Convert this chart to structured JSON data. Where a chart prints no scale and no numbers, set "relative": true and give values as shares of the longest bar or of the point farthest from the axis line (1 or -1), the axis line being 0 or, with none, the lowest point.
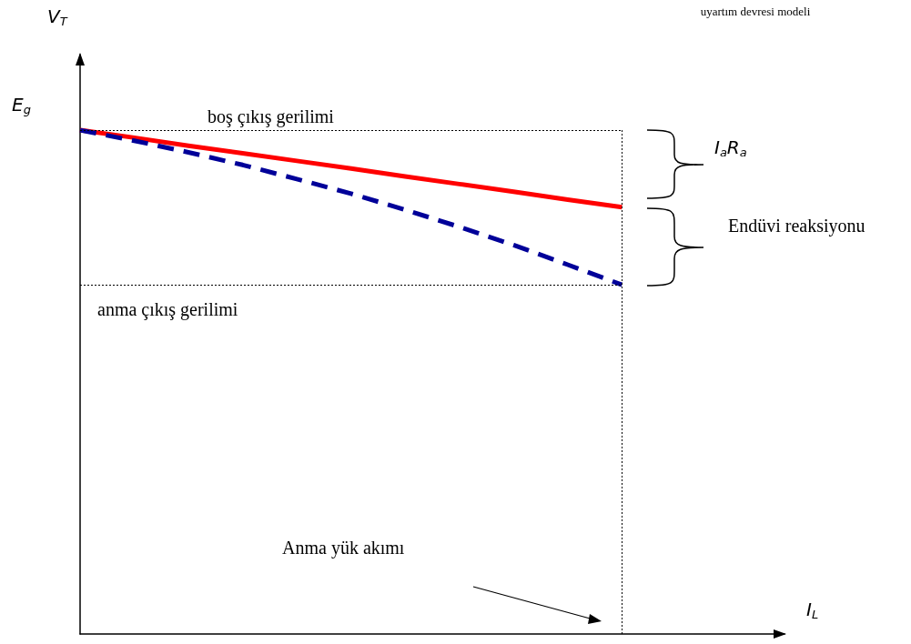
{
  "chart_data": {
    "type": "line",
    "relative": true,
    "xlabel": "I$_{L}$",
    "categories": [
      null,
      null,
      null,
      null,
      null,
      null,
      null,
      null,
      null,
      null,
      null,
      null,
      null,
      null
    ],
    "series": [
      {
        "color": "#ff0000",
        "line_style": "solid",
        "values": [
          1,
          0.985,
          0.969,
          0.954,
          0.939,
          0.924,
          0.908,
          0.893,
          0.878,
          0.862,
          0.847,
          null,
          null,
          null
        ]
      },
      {
        "color": "#000099",
        "line_style": "dashed",
        "values": [
          1,
          0.979,
          0.956,
          0.931,
          0.903,
          0.874,
          0.842,
          0.808,
          0.772,
          0.733,
          0.693,
          null,
          null,
          null
        ]
      }
    ],
    "marker": "none",
    "grid": false,
    "annotations": [
      "uyartım devresi modeli",
      "boş çıkış gerilimi",
      "anma çıkış gerilimi",
      "I$_{a}$R$_{a}$",
      "Endüvi reaksiyonu",
      "Anma yük akımı",
      "E$_{g}$",
      "V$_{T}$"
    ]
  }
}
